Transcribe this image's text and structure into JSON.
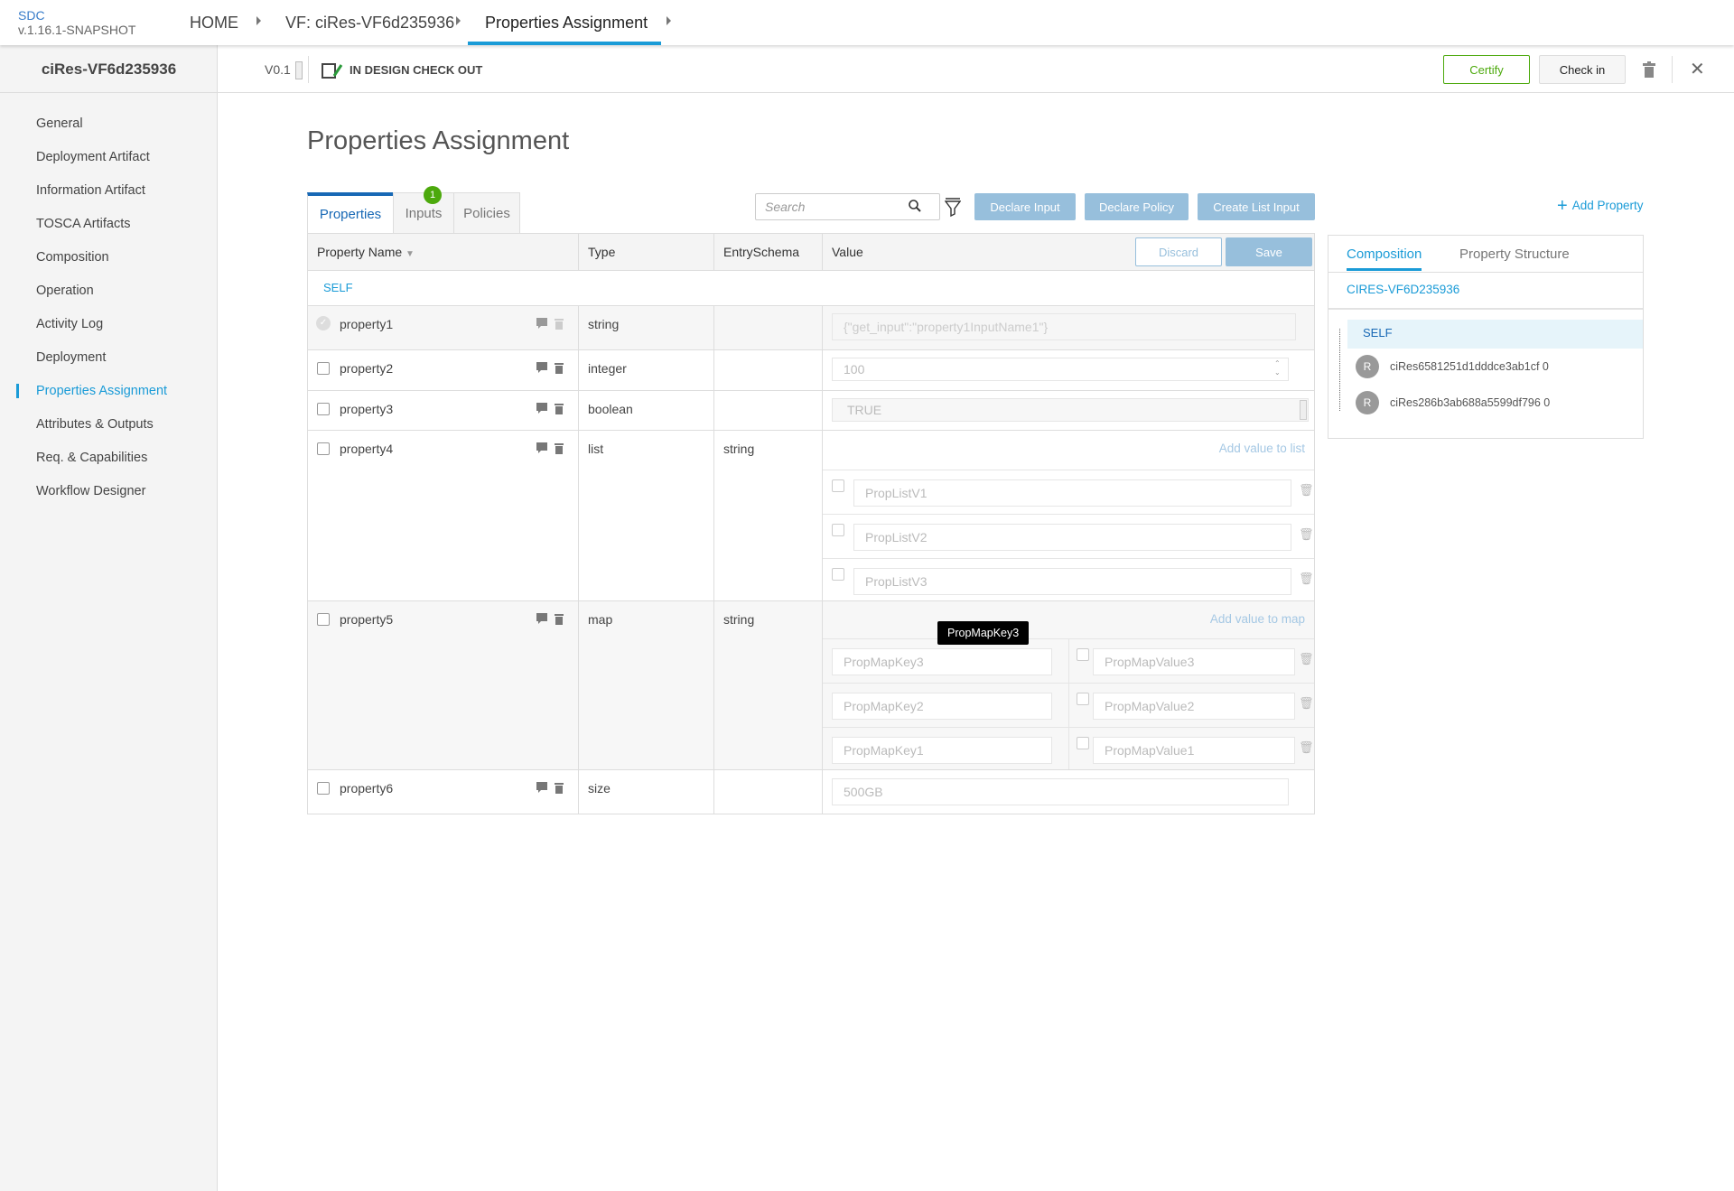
{
  "header": {
    "app_name": "SDC",
    "version": "v.1.16.1-SNAPSHOT",
    "breadcrumbs": [
      "HOME",
      "VF: ciRes-VF6d235936",
      "Properties Assignment"
    ]
  },
  "subheader": {
    "resource_version": "V0.1",
    "status": "IN DESIGN CHECK OUT",
    "certify_label": "Certify",
    "checkin_label": "Check in"
  },
  "sidebar": {
    "title": "ciRes-VF6d235936",
    "items": [
      {
        "label": "General"
      },
      {
        "label": "Deployment Artifact"
      },
      {
        "label": "Information Artifact"
      },
      {
        "label": "TOSCA Artifacts"
      },
      {
        "label": "Composition"
      },
      {
        "label": "Operation"
      },
      {
        "label": "Activity Log"
      },
      {
        "label": "Deployment"
      },
      {
        "label": "Properties Assignment",
        "active": true
      },
      {
        "label": "Attributes & Outputs"
      },
      {
        "label": "Req. & Capabilities"
      },
      {
        "label": "Workflow Designer"
      }
    ]
  },
  "main": {
    "title": "Properties Assignment",
    "tabs": [
      {
        "label": "Properties"
      },
      {
        "label": "Inputs",
        "badge": "1"
      },
      {
        "label": "Policies"
      }
    ],
    "search_placeholder": "Search",
    "declare_input": "Declare Input",
    "declare_policy": "Declare Policy",
    "create_list_input": "Create List Input",
    "add_property": "Add Property",
    "table": {
      "headers": [
        "Property Name",
        "Type",
        "EntrySchema",
        "Value"
      ],
      "discard_label": "Discard",
      "save_label": "Save",
      "group": "SELF",
      "rows": [
        {
          "name": "property1",
          "type": "string",
          "schema": "",
          "value": "{\"get_input\":\"property1InputName1\"}"
        },
        {
          "name": "property2",
          "type": "integer",
          "schema": "",
          "value": "100"
        },
        {
          "name": "property3",
          "type": "boolean",
          "schema": "",
          "value": "TRUE"
        },
        {
          "name": "property4",
          "type": "list",
          "schema": "string",
          "add_label": "Add value to list",
          "items": [
            "PropListV1",
            "PropListV2",
            "PropListV3"
          ]
        },
        {
          "name": "property5",
          "type": "map",
          "schema": "string",
          "add_label": "Add value to map",
          "entries": [
            {
              "key": "PropMapKey3",
              "value": "PropMapValue3"
            },
            {
              "key": "PropMapKey2",
              "value": "PropMapValue2"
            },
            {
              "key": "PropMapKey1",
              "value": "PropMapValue1"
            }
          ],
          "tooltip": "PropMapKey3"
        },
        {
          "name": "property6",
          "type": "size",
          "schema": "",
          "value": "500GB"
        }
      ]
    }
  },
  "right_panel": {
    "tabs": [
      "Composition",
      "Property Structure"
    ],
    "root": "CIRES-VF6D235936",
    "tree": [
      {
        "label": "SELF"
      },
      {
        "avatar": "R",
        "label": "ciRes6581251d1dddce3ab1cf 0"
      },
      {
        "avatar": "R",
        "label": "ciRes286b3ab688a5599df796 0"
      }
    ]
  },
  "colors": {
    "accent": "#1a9bd7",
    "certify": "#4ca90c",
    "action_button": "#97bfdc"
  }
}
